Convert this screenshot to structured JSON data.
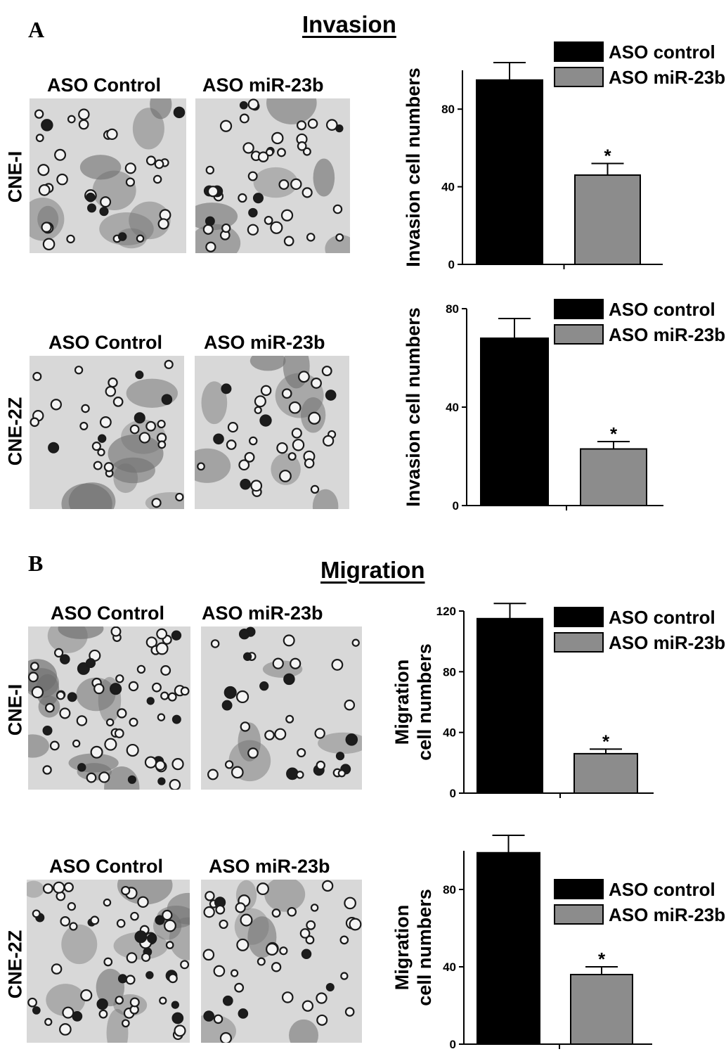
{
  "sections": {
    "a": {
      "letter": "A",
      "title": "Invasion"
    },
    "b": {
      "letter": "B",
      "title": "Migration"
    }
  },
  "micrographs": {
    "col_control": "ASO Control",
    "col_mir": "ASO miR-23b",
    "rows": [
      {
        "label": "CNE-I"
      },
      {
        "label": "CNE-2Z"
      },
      {
        "label": "CNE-I"
      },
      {
        "label": "CNE-2Z"
      }
    ]
  },
  "colors": {
    "control": "#000000",
    "mir": "#8c8c8c",
    "tissue_light": "#d8d8d8",
    "tissue_dark": "#6e6e6e"
  },
  "chart_data": [
    {
      "type": "bar",
      "ylabel": [
        "Invasion cell numbers"
      ],
      "ylim": [
        0,
        100
      ],
      "yticks": [
        0,
        40,
        80
      ],
      "series": [
        {
          "name": "ASO control",
          "value": 95,
          "error": 9,
          "color": "#000000"
        },
        {
          "name": "ASO miR-23b",
          "value": 46,
          "error": 6,
          "color": "#8c8c8c",
          "annotation": "*"
        }
      ],
      "legend": "top-right"
    },
    {
      "type": "bar",
      "ylabel": [
        "Invasion cell numbers"
      ],
      "ylim": [
        0,
        80
      ],
      "yticks": [
        0,
        40,
        80
      ],
      "series": [
        {
          "name": "ASO control",
          "value": 68,
          "error": 8,
          "color": "#000000"
        },
        {
          "name": "ASO miR-23b",
          "value": 23,
          "error": 3,
          "color": "#8c8c8c",
          "annotation": "*"
        }
      ],
      "legend": "top-right"
    },
    {
      "type": "bar",
      "ylabel": [
        "Migration",
        "cell numbers"
      ],
      "ylim": [
        0,
        120
      ],
      "yticks": [
        0,
        40,
        80,
        120
      ],
      "series": [
        {
          "name": "ASO control",
          "value": 115,
          "error": 10,
          "color": "#000000"
        },
        {
          "name": "ASO miR-23b",
          "value": 26,
          "error": 3,
          "color": "#8c8c8c",
          "annotation": "*"
        }
      ],
      "legend": "top-right"
    },
    {
      "type": "bar",
      "ylabel": [
        "Migration",
        "cell numbers"
      ],
      "ylim": [
        0,
        100
      ],
      "yticks": [
        0,
        40,
        80
      ],
      "series": [
        {
          "name": "ASO control",
          "value": 99,
          "error": 9,
          "color": "#000000"
        },
        {
          "name": "ASO miR-23b",
          "value": 36,
          "error": 4,
          "color": "#8c8c8c",
          "annotation": "*"
        }
      ],
      "legend": "middle-right"
    }
  ]
}
